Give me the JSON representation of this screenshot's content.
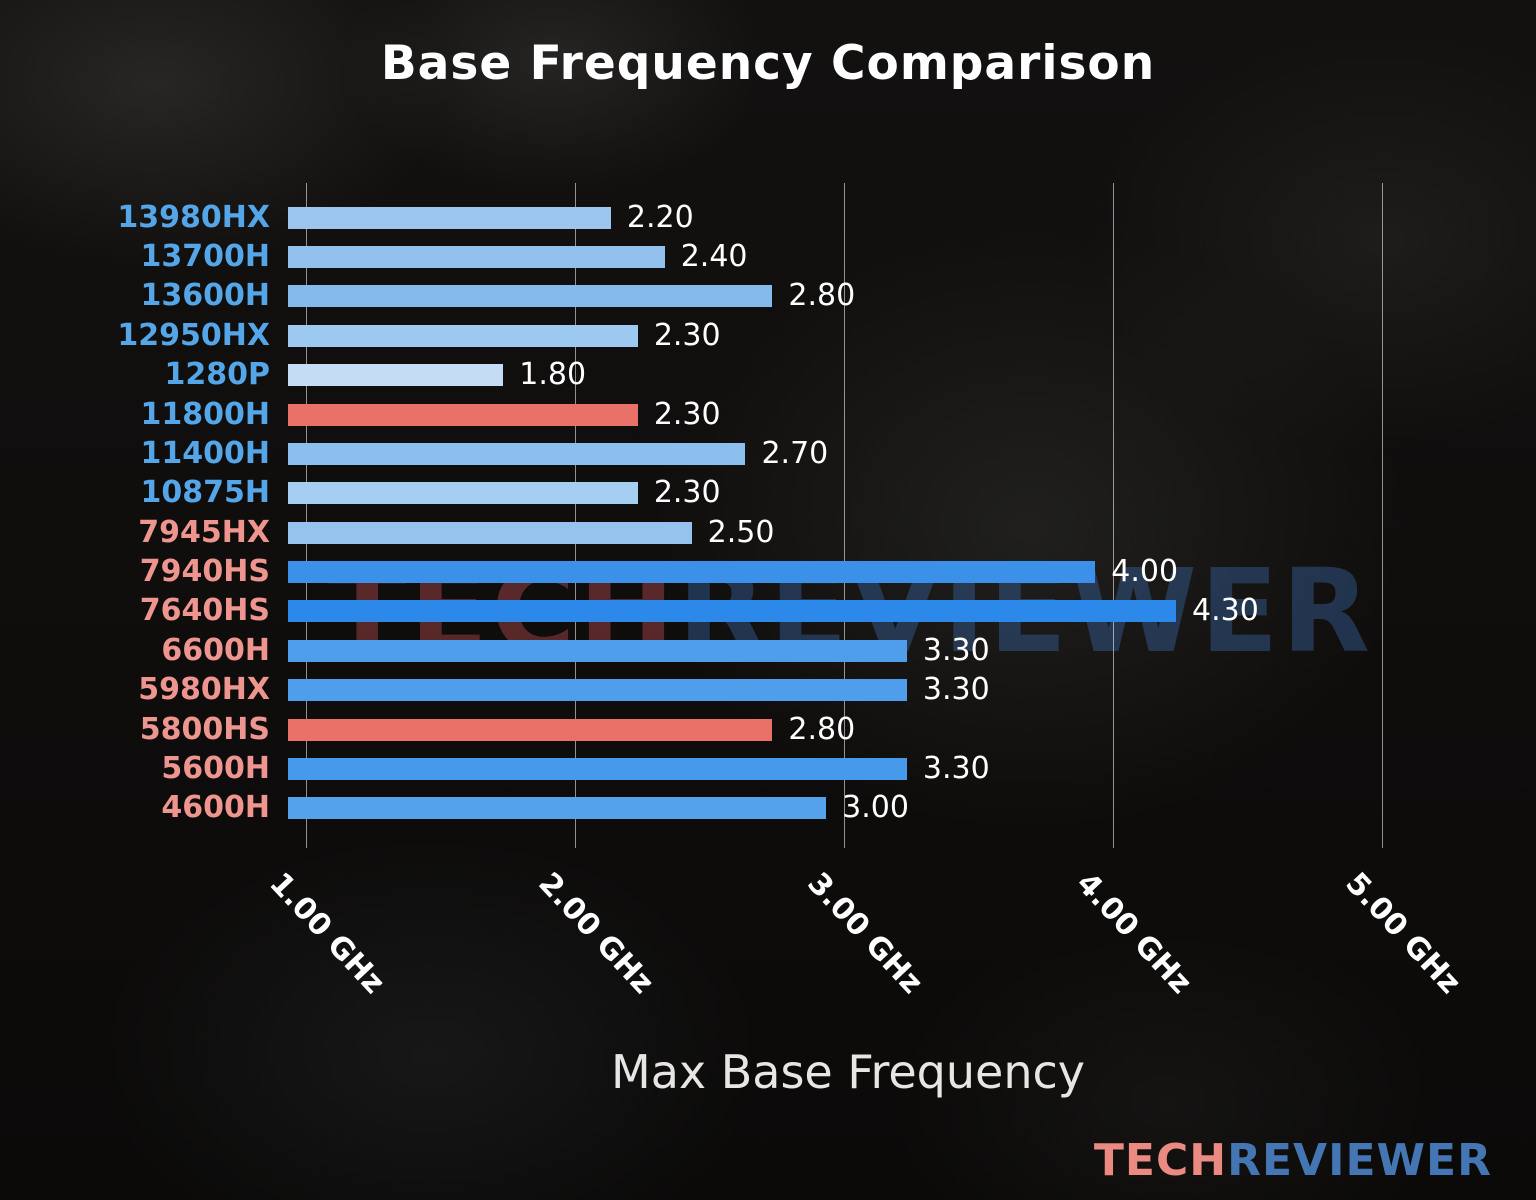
{
  "watermark": {
    "part1": "TECH",
    "part2": "REVIEWER"
  },
  "logo": {
    "part1": "TECH",
    "part2": "REVIEWER"
  },
  "colors": {
    "intel_label": "#54a6e8",
    "amd_label": "#ee958f",
    "value_text": "#ffffff",
    "gridline": "rgba(255,255,255,0.55)",
    "highlight_bar_red": "#e97168"
  },
  "chart_data": {
    "type": "bar",
    "orientation": "horizontal",
    "title": "Base Frequency Comparison",
    "xlabel": "Max Base Frequency",
    "unit": "GHz",
    "grid": true,
    "axis": {
      "min": 1.0,
      "max": 5.4,
      "ticks": [
        {
          "value": 1.0,
          "label": "1.00 GHz"
        },
        {
          "value": 2.0,
          "label": "2.00 GHz"
        },
        {
          "value": 3.0,
          "label": "3.00 GHz"
        },
        {
          "value": 4.0,
          "label": "4.00 GHz"
        },
        {
          "value": 5.0,
          "label": "5.00 GHz"
        }
      ]
    },
    "bars": [
      {
        "label": "13980HX",
        "value": 2.2,
        "display": "2.20",
        "group": "intel",
        "bar_color": "#9cc6ee"
      },
      {
        "label": "13700H",
        "value": 2.4,
        "display": "2.40",
        "group": "intel",
        "bar_color": "#92c1ed"
      },
      {
        "label": "13600H",
        "value": 2.8,
        "display": "2.80",
        "group": "intel",
        "bar_color": "#84baec"
      },
      {
        "label": "12950HX",
        "value": 2.3,
        "display": "2.30",
        "group": "intel",
        "bar_color": "#9dc9f0"
      },
      {
        "label": "1280P",
        "value": 1.8,
        "display": "1.80",
        "group": "intel",
        "bar_color": "#c4ddf4"
      },
      {
        "label": "11800H",
        "value": 2.3,
        "display": "2.30",
        "group": "intel",
        "bar_color": "#e97168"
      },
      {
        "label": "11400H",
        "value": 2.7,
        "display": "2.70",
        "group": "intel",
        "bar_color": "#8cbeee"
      },
      {
        "label": "10875H",
        "value": 2.3,
        "display": "2.30",
        "group": "intel",
        "bar_color": "#a5cef2"
      },
      {
        "label": "7945HX",
        "value": 2.5,
        "display": "2.50",
        "group": "amd",
        "bar_color": "#96c3ee"
      },
      {
        "label": "7940HS",
        "value": 4.0,
        "display": "4.00",
        "group": "amd",
        "bar_color": "#3b91ea"
      },
      {
        "label": "7640HS",
        "value": 4.3,
        "display": "4.30",
        "group": "amd",
        "bar_color": "#2d89e9"
      },
      {
        "label": "6600H",
        "value": 3.3,
        "display": "3.30",
        "group": "amd",
        "bar_color": "#4f9eec"
      },
      {
        "label": "5980HX",
        "value": 3.3,
        "display": "3.30",
        "group": "amd",
        "bar_color": "#4f9eec"
      },
      {
        "label": "5800HS",
        "value": 2.8,
        "display": "2.80",
        "group": "amd",
        "bar_color": "#e97168"
      },
      {
        "label": "5600H",
        "value": 3.3,
        "display": "3.30",
        "group": "amd",
        "bar_color": "#479aeb"
      },
      {
        "label": "4600H",
        "value": 3.0,
        "display": "3.00",
        "group": "amd",
        "bar_color": "#55a2ec"
      }
    ]
  }
}
